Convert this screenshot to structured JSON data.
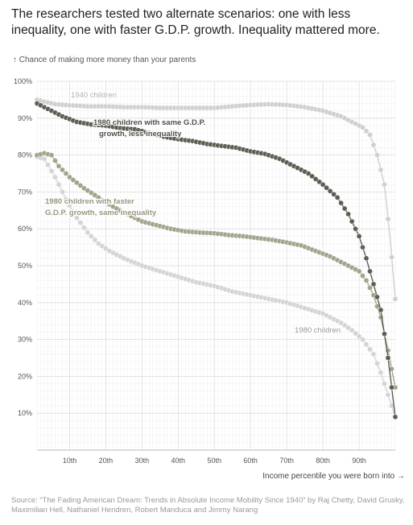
{
  "headline": "The researchers tested two alternate scenarios: one with less inequality, one with faster G.D.P. growth. Inequality mattered more.",
  "source": "Source: “The Fading American Dream: Trends in Absolute Income Mobility Since 1940” by Raj Chetty, David Grusky, Maximilian Hell, Nathaniel Hendren, Robert Manduca and Jimmy Narang",
  "chart_data": {
    "type": "scatter",
    "title": "",
    "ylabel": "↑ Chance of making more money than your parents",
    "xlabel": "Income percentile you were born into →",
    "xlim": [
      1,
      100
    ],
    "ylim": [
      0,
      100
    ],
    "grid": true,
    "x_ticks": [
      10,
      20,
      30,
      40,
      50,
      60,
      70,
      80,
      90
    ],
    "x_tick_labels": [
      "10th",
      "20th",
      "30th",
      "40th",
      "50th",
      "60th",
      "70th",
      "80th",
      "90th"
    ],
    "y_ticks": [
      10,
      20,
      30,
      40,
      50,
      60,
      70,
      80,
      90,
      100
    ],
    "y_tick_labels": [
      "10%",
      "20%",
      "30%",
      "40%",
      "50%",
      "60%",
      "70%",
      "80%",
      "90%",
      "100%"
    ],
    "series": [
      {
        "name": "1940 children",
        "color": "#cfcfcf",
        "points": [
          [
            1,
            95
          ],
          [
            3,
            94.5
          ],
          [
            6,
            93.8
          ],
          [
            10,
            93.5
          ],
          [
            15,
            93.2
          ],
          [
            20,
            93.2
          ],
          [
            25,
            93
          ],
          [
            30,
            93
          ],
          [
            35,
            92.8
          ],
          [
            40,
            92.8
          ],
          [
            45,
            92.8
          ],
          [
            50,
            92.8
          ],
          [
            55,
            93.2
          ],
          [
            60,
            93.6
          ],
          [
            65,
            93.8
          ],
          [
            70,
            93.6
          ],
          [
            75,
            93
          ],
          [
            80,
            92
          ],
          [
            85,
            90.5
          ],
          [
            88,
            89
          ],
          [
            91,
            87.5
          ],
          [
            93,
            85.5
          ],
          [
            95,
            80
          ],
          [
            97,
            72
          ],
          [
            98.5,
            58
          ],
          [
            100,
            41
          ]
        ]
      },
      {
        "name": "1980 children",
        "color": "#d4d4d4",
        "points": [
          [
            1,
            79.5
          ],
          [
            3,
            79
          ],
          [
            6,
            74
          ],
          [
            9,
            68
          ],
          [
            12,
            63
          ],
          [
            15,
            59
          ],
          [
            18,
            56
          ],
          [
            21,
            54
          ],
          [
            25,
            52
          ],
          [
            30,
            50
          ],
          [
            35,
            48.5
          ],
          [
            40,
            47
          ],
          [
            45,
            45.5
          ],
          [
            50,
            44.5
          ],
          [
            55,
            43
          ],
          [
            60,
            42
          ],
          [
            65,
            41
          ],
          [
            70,
            40
          ],
          [
            75,
            38.5
          ],
          [
            80,
            37
          ],
          [
            85,
            34.5
          ],
          [
            88,
            32.5
          ],
          [
            91,
            30
          ],
          [
            94,
            26
          ],
          [
            96,
            21
          ],
          [
            98,
            15
          ],
          [
            100,
            9
          ]
        ]
      },
      {
        "name": "1980 children with faster G.D.P. growth, same inequality",
        "color": "#a4a38c",
        "points": [
          [
            1,
            80
          ],
          [
            3,
            80.5
          ],
          [
            5,
            80
          ],
          [
            7,
            77
          ],
          [
            10,
            74
          ],
          [
            14,
            71
          ],
          [
            18,
            68.5
          ],
          [
            22,
            66
          ],
          [
            26,
            64
          ],
          [
            30,
            62
          ],
          [
            34,
            61
          ],
          [
            38,
            60
          ],
          [
            42,
            59.3
          ],
          [
            46,
            59
          ],
          [
            50,
            58.8
          ],
          [
            54,
            58.3
          ],
          [
            58,
            58
          ],
          [
            62,
            57.5
          ],
          [
            66,
            57
          ],
          [
            70,
            56.3
          ],
          [
            74,
            55.5
          ],
          [
            78,
            54
          ],
          [
            82,
            52.5
          ],
          [
            86,
            50.5
          ],
          [
            90,
            48.5
          ],
          [
            92,
            46
          ],
          [
            94,
            42
          ],
          [
            96,
            36
          ],
          [
            98,
            27
          ],
          [
            100,
            17
          ]
        ]
      },
      {
        "name": "1980 children with same G.D.P. growth, less inequality",
        "color": "#5e5e55",
        "points": [
          [
            1,
            94
          ],
          [
            3,
            93
          ],
          [
            5,
            92
          ],
          [
            8,
            90.5
          ],
          [
            12,
            89
          ],
          [
            16,
            88.3
          ],
          [
            20,
            88
          ],
          [
            24,
            87.3
          ],
          [
            28,
            87
          ],
          [
            32,
            86
          ],
          [
            36,
            85
          ],
          [
            40,
            84.3
          ],
          [
            44,
            83.8
          ],
          [
            48,
            83
          ],
          [
            52,
            82.5
          ],
          [
            56,
            82
          ],
          [
            60,
            81
          ],
          [
            64,
            80.3
          ],
          [
            68,
            79
          ],
          [
            72,
            77
          ],
          [
            76,
            75
          ],
          [
            80,
            72
          ],
          [
            84,
            68.5
          ],
          [
            87,
            64
          ],
          [
            90,
            58
          ],
          [
            92,
            52
          ],
          [
            94,
            45
          ],
          [
            96,
            38
          ],
          [
            98,
            25
          ],
          [
            99,
            17
          ],
          [
            100,
            9
          ]
        ]
      }
    ],
    "annotations": [
      {
        "text": "1940 children",
        "color": "#b0b0b0"
      },
      {
        "text": "1980 children with same G.D.P.",
        "color": "#4f4f47"
      },
      {
        "text": "growth, less inequality",
        "color": "#4f4f47"
      },
      {
        "text": "1980 children with faster",
        "color": "#98977e"
      },
      {
        "text": "G.D.P. growth, same inequality",
        "color": "#98977e"
      },
      {
        "text": "1980 children",
        "color": "#9a9a9a"
      }
    ]
  }
}
